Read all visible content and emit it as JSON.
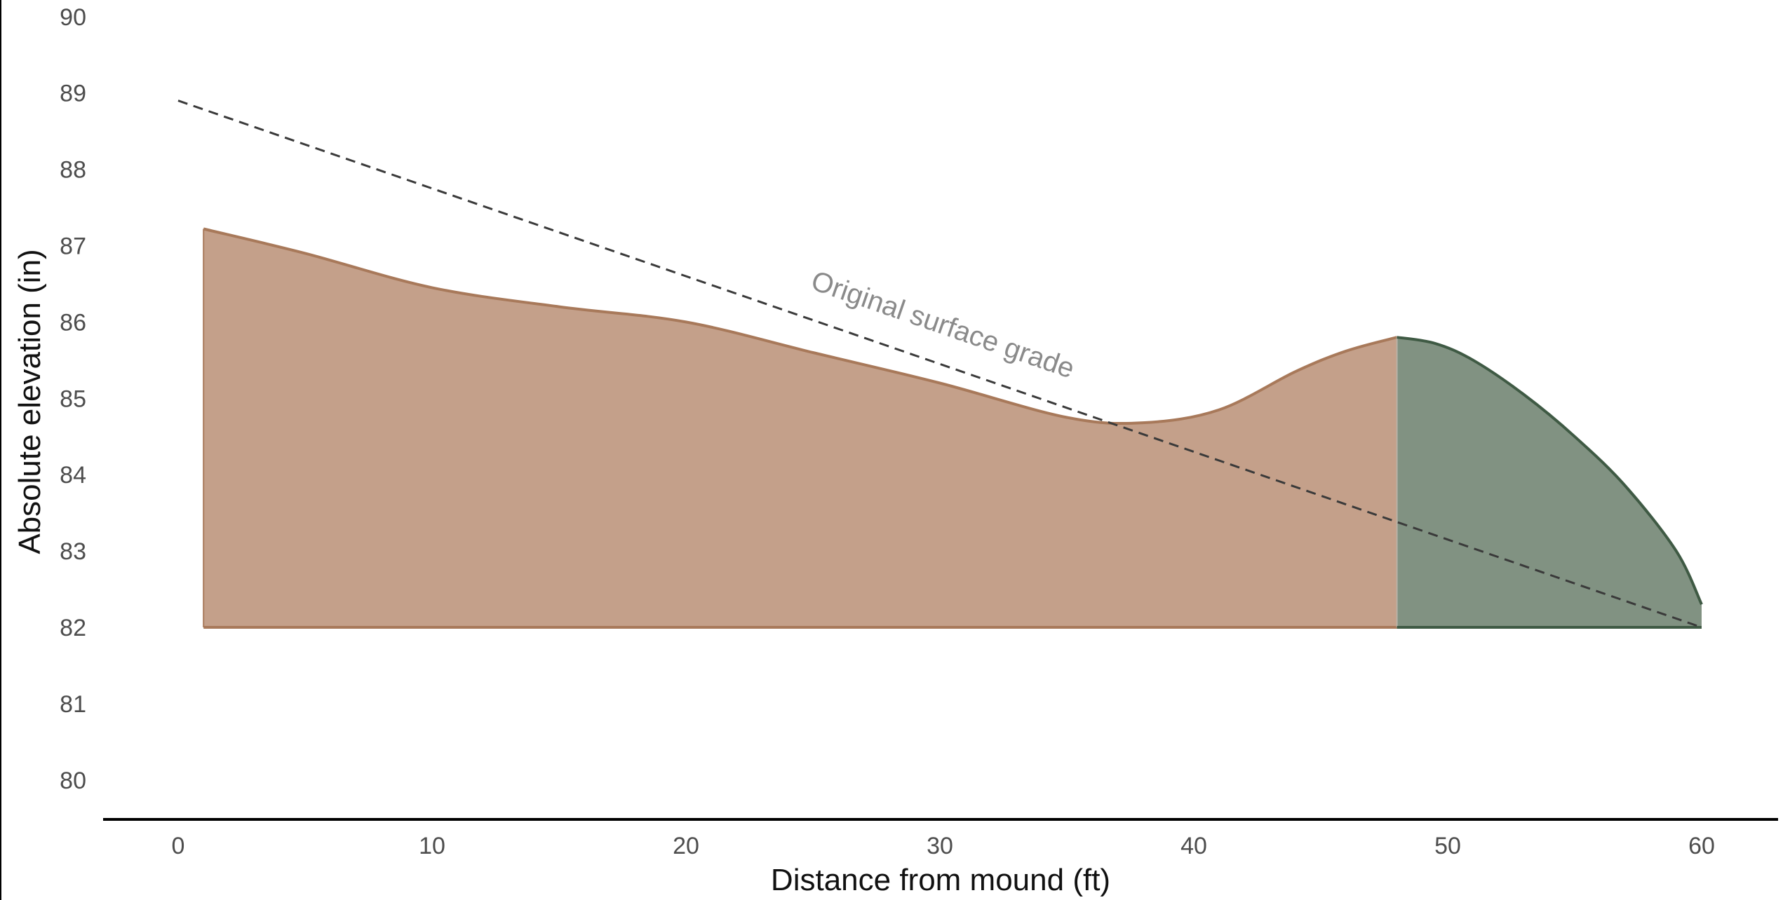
{
  "chart_data": {
    "type": "area",
    "title": "",
    "xlabel": "Distance from mound (ft)",
    "ylabel": "Absolute elevation (in)",
    "xlim": [
      -3,
      63
    ],
    "ylim": [
      79.5,
      90.2
    ],
    "x_ticks": [
      0,
      10,
      20,
      30,
      40,
      50,
      60
    ],
    "y_ticks": [
      80,
      81,
      82,
      83,
      84,
      85,
      86,
      87,
      88,
      89,
      90
    ],
    "grid": false,
    "baseline": 82,
    "colors": {
      "infield_fill": "#c4a08a",
      "infield_stroke": "#a8795a",
      "grass_fill": "#819282",
      "grass_stroke": "#3f5a44",
      "grade_line": "#3a3a3a",
      "axis": "#000000"
    },
    "series": [
      {
        "type": "area",
        "x": [
          1,
          5,
          10,
          15,
          20,
          25,
          30,
          35,
          38,
          41,
          44,
          46,
          48
        ],
        "y": [
          87.22,
          86.9,
          86.45,
          86.2,
          86.0,
          85.6,
          85.2,
          84.75,
          84.68,
          84.85,
          85.35,
          85.62,
          85.8
        ]
      },
      {
        "type": "area",
        "x": [
          48,
          49.5,
          51,
          53,
          55,
          57,
          59,
          60
        ],
        "y": [
          85.8,
          85.72,
          85.5,
          85.05,
          84.5,
          83.85,
          83.0,
          82.3
        ]
      },
      {
        "type": "line",
        "style": "dashed",
        "x": [
          0,
          60
        ],
        "y": [
          88.9,
          82.0
        ]
      }
    ],
    "annotations": [
      {
        "text": "Original surface grade",
        "x": 30,
        "y": 85.85
      }
    ]
  }
}
